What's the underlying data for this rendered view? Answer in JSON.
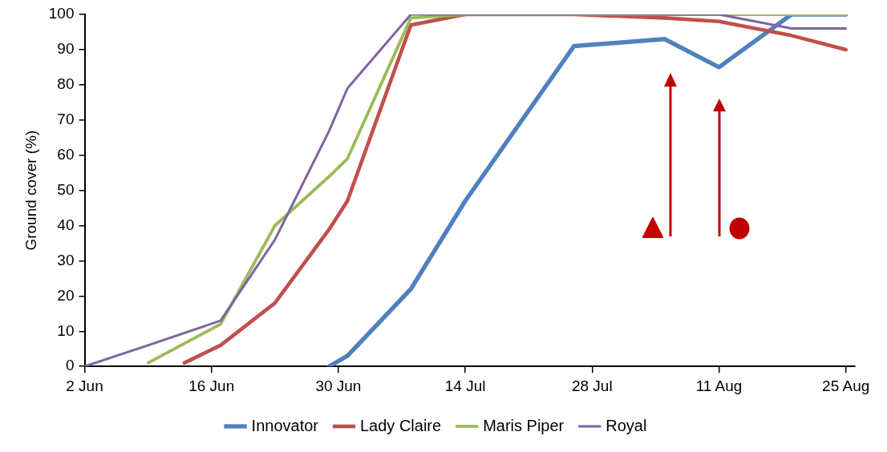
{
  "chart_data": {
    "type": "line",
    "ylabel": "Ground cover (%)",
    "xlim": [
      "--06-02",
      "--08-26"
    ],
    "xticks": [
      {
        "value": "--06-02",
        "label": "2 Jun"
      },
      {
        "value": "--06-16",
        "label": "16 Jun"
      },
      {
        "value": "--06-30",
        "label": "30 Jun"
      },
      {
        "value": "--07-14",
        "label": "14 Jul"
      },
      {
        "value": "--07-28",
        "label": "28 Jul"
      },
      {
        "value": "--08-11",
        "label": "11 Aug"
      },
      {
        "value": "--08-25",
        "label": "25 Aug"
      }
    ],
    "ylim": [
      0,
      100
    ],
    "yticks": [
      0,
      10,
      20,
      30,
      40,
      50,
      60,
      70,
      80,
      90,
      100
    ],
    "grid": false,
    "legend": "bottom",
    "marker": "none",
    "line_style": "solid",
    "series": [
      {
        "name": "Innovator",
        "color": "#4f81bd",
        "x": [
          "--06-29",
          "--07-01",
          "--07-08",
          "--07-14",
          "--07-26",
          "--08-05",
          "--08-11",
          "--08-19",
          "--08-25"
        ],
        "values": [
          0,
          3,
          22,
          47,
          91,
          93,
          85,
          100,
          100
        ]
      },
      {
        "name": "Lady Claire",
        "color": "#c0504d",
        "x": [
          "--06-13",
          "--06-17",
          "--06-23",
          "--06-29",
          "--07-01",
          "--07-08",
          "--07-14",
          "--07-26",
          "--08-05",
          "--08-11",
          "--08-19",
          "--08-25"
        ],
        "values": [
          1,
          6,
          18,
          39,
          47,
          97,
          100,
          100,
          99,
          98,
          94,
          90
        ]
      },
      {
        "name": "Maris Piper",
        "color": "#9bbb59",
        "x": [
          "--06-09",
          "--06-17",
          "--06-23",
          "--06-29",
          "--07-01",
          "--07-08",
          "--07-14",
          "--07-26",
          "--08-05",
          "--08-11",
          "--08-19",
          "--08-25"
        ],
        "values": [
          1,
          12,
          40,
          54,
          59,
          99,
          100,
          100,
          100,
          100,
          100,
          100
        ]
      },
      {
        "name": "Royal",
        "color": "#8064a2",
        "x": [
          "--06-02",
          "--06-09",
          "--06-17",
          "--06-23",
          "--06-29",
          "--07-01",
          "--07-08",
          "--07-14",
          "--07-26",
          "--08-05",
          "--08-11",
          "--08-19",
          "--08-25"
        ],
        "values": [
          0,
          6,
          13,
          36,
          67,
          79,
          100,
          100,
          100,
          100,
          100,
          96,
          96
        ]
      }
    ]
  }
}
